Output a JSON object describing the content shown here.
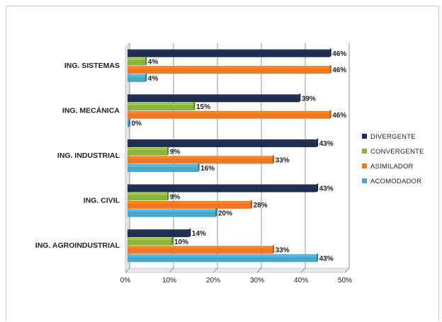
{
  "chart_data": {
    "type": "bar",
    "orientation": "horizontal",
    "categories": [
      "ING. SISTEMAS",
      "ING. MECÁNICA",
      "ING. INDUSTRIAL",
      "ING. CIVIL",
      "ING. AGROINDUSTRIAL"
    ],
    "series": [
      {
        "name": "DIVERGENTE",
        "color": "#1f2d4f",
        "values": [
          46,
          39,
          43,
          43,
          14
        ],
        "labels": [
          "46%",
          "39%",
          "43%",
          "43%",
          "14%"
        ]
      },
      {
        "name": "CONVERGENTE",
        "color": "#8cb43c",
        "values": [
          4,
          15,
          9,
          9,
          10
        ],
        "labels": [
          "4%",
          "15%",
          "9%",
          "9%",
          "10%"
        ]
      },
      {
        "name": "ASIMILADOR",
        "color": "#f07822",
        "values": [
          46,
          46,
          33,
          28,
          33
        ],
        "labels": [
          "46%",
          "46%",
          "33%",
          "28%",
          "33%"
        ]
      },
      {
        "name": "ACOMODADOR",
        "color": "#4aa7c8",
        "values": [
          4,
          0,
          16,
          20,
          43
        ],
        "labels": [
          "4%",
          "0%",
          "16%",
          "20%",
          "43%"
        ]
      }
    ],
    "x_ticks": [
      "0%",
      "10%",
      "20%",
      "30%",
      "40%",
      "50%"
    ],
    "xlim": [
      0,
      50
    ],
    "grid": true,
    "legend_position": "right"
  }
}
